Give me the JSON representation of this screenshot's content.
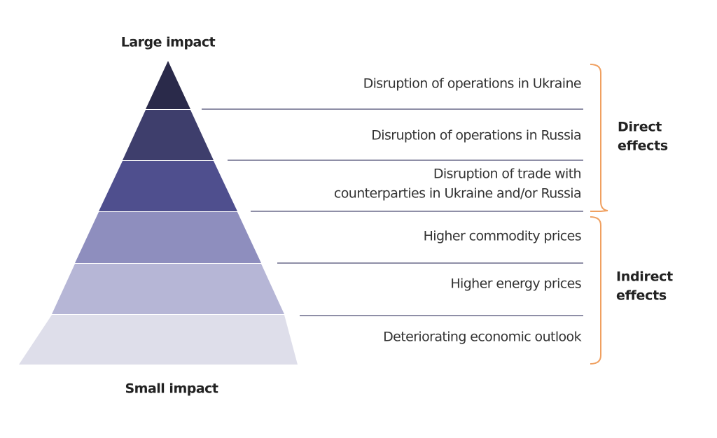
{
  "top_label": "Large impact",
  "bottom_label": "Small impact",
  "levels": [
    {
      "lines": [
        "Disruption of operations in Ukraine"
      ]
    },
    {
      "lines": [
        "Disruption of operations in Russia"
      ]
    },
    {
      "lines": [
        "Disruption of trade with",
        "counterparties in Ukraine and/or Russia"
      ]
    },
    {
      "lines": [
        "Higher commodity prices"
      ]
    },
    {
      "lines": [
        "Higher energy prices"
      ]
    },
    {
      "lines": [
        "Deteriorating economic outlook"
      ]
    }
  ],
  "groups": [
    {
      "lines": [
        "Direct",
        "effects"
      ]
    },
    {
      "lines": [
        "Indirect",
        "effects"
      ]
    }
  ]
}
